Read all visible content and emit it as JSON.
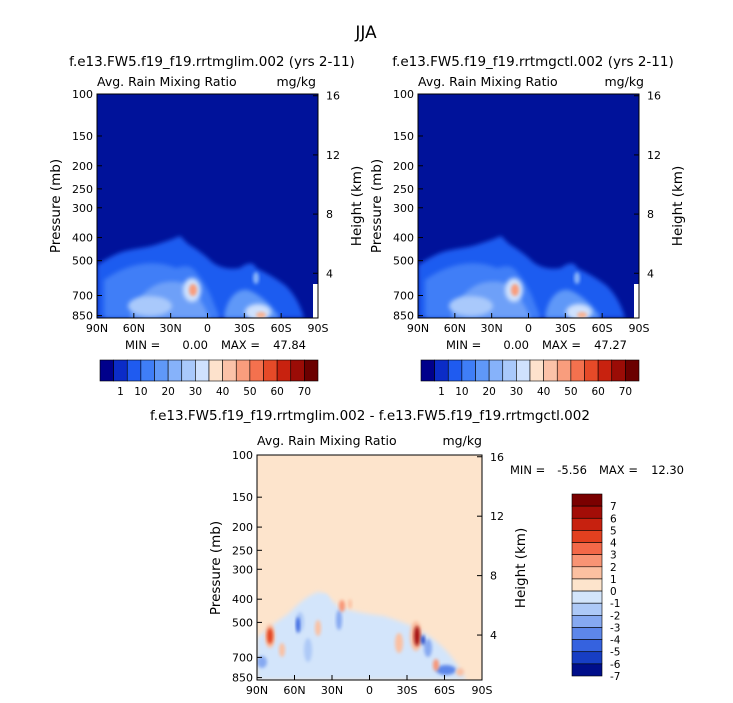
{
  "figure": {
    "season": "JJA"
  },
  "chart_data": [
    {
      "id": "glim",
      "type": "heatmap",
      "title": "f.e13.FW5.f19_f19.rrtmglim.002 (yrs 2-11)",
      "subtitle_left": "Avg. Rain Mixing Ratio",
      "subtitle_right": "mg/kg",
      "ylabel": "Pressure (mb)",
      "ylabel_right": "Height (km)",
      "xticks": [
        "90N",
        "60N",
        "30N",
        "0",
        "30S",
        "60S",
        "90S"
      ],
      "yticks": [
        "100",
        "150",
        "200",
        "250",
        "300",
        "400",
        "500",
        "700",
        "850"
      ],
      "yticks_right": [
        "16",
        "12",
        "8",
        "4"
      ],
      "stats": {
        "min_label": "MIN =",
        "min": "0.00",
        "max_label": "MAX =",
        "max": "47.84"
      },
      "colorbar": [
        "1",
        "10",
        "20",
        "30",
        "40",
        "50",
        "60",
        "70"
      ]
    },
    {
      "id": "ctl",
      "type": "heatmap",
      "title": "f.e13.FW5.f19_f19.rrtmgctl.002 (yrs 2-11)",
      "subtitle_left": "Avg. Rain Mixing Ratio",
      "subtitle_right": "mg/kg",
      "ylabel": "Pressure (mb)",
      "ylabel_right": "Height (km)",
      "xticks": [
        "90N",
        "60N",
        "30N",
        "0",
        "30S",
        "60S",
        "90S"
      ],
      "yticks": [
        "100",
        "150",
        "200",
        "250",
        "300",
        "400",
        "500",
        "700",
        "850"
      ],
      "yticks_right": [
        "16",
        "12",
        "8",
        "4"
      ],
      "stats": {
        "min_label": "MIN =",
        "min": "0.00",
        "max_label": "MAX =",
        "max": "47.27"
      },
      "colorbar": [
        "1",
        "10",
        "20",
        "30",
        "40",
        "50",
        "60",
        "70"
      ]
    },
    {
      "id": "diff",
      "type": "heatmap",
      "title": "f.e13.FW5.f19_f19.rrtmglim.002 - f.e13.FW5.f19_f19.rrtmgctl.002",
      "subtitle_left": "Avg. Rain Mixing Ratio",
      "subtitle_right": "mg/kg",
      "ylabel": "Pressure (mb)",
      "ylabel_right": "Height (km)",
      "xticks": [
        "90N",
        "60N",
        "30N",
        "0",
        "30S",
        "60S",
        "90S"
      ],
      "yticks": [
        "100",
        "150",
        "200",
        "250",
        "300",
        "400",
        "500",
        "700",
        "850"
      ],
      "yticks_right": [
        "16",
        "12",
        "8",
        "4"
      ],
      "stats": {
        "min_label": "MIN =",
        "min": "-5.56",
        "max_label": "MAX =",
        "max": "12.30"
      },
      "colorbar": [
        "7",
        "6",
        "5",
        "4",
        "3",
        "2",
        "1",
        "0",
        "-1",
        "-2",
        "-3",
        "-4",
        "-5",
        "-6",
        "-7"
      ]
    }
  ],
  "colors": {
    "field_bg": "#00129a",
    "diff_bg": "#fde4cc",
    "abs_scale": [
      "#00008b",
      "#0b2cc7",
      "#1f5bf0",
      "#3f7ef7",
      "#5f98f8",
      "#86b2fa",
      "#a9c9fb",
      "#cfe1fd",
      "#fde2cc",
      "#fbc2a8",
      "#f99d7d",
      "#f4714e",
      "#e64a28",
      "#c8220f",
      "#9b0c06",
      "#6b0000"
    ],
    "diff_scale": [
      "#7a0000",
      "#a30d07",
      "#c7210f",
      "#e2401f",
      "#f36848",
      "#f89474",
      "#fbc0a1",
      "#fde4cc",
      "#d3e5fb",
      "#adc9f7",
      "#86a9f1",
      "#5d87ea",
      "#3562df",
      "#173ec4",
      "#000e8a"
    ]
  }
}
